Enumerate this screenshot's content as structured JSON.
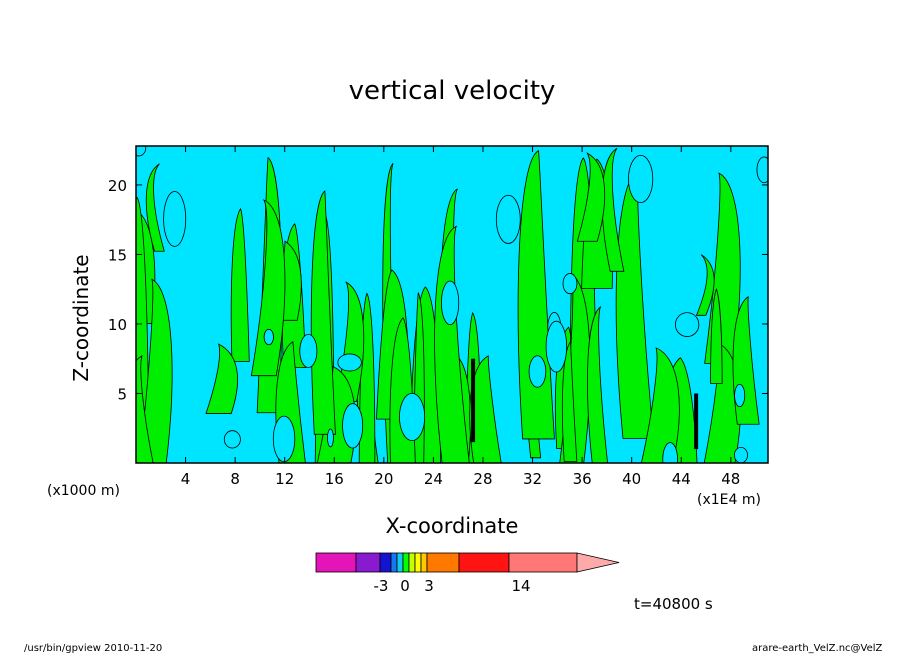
{
  "chart_data": {
    "type": "heatmap",
    "title": "vertical velocity",
    "xlabel": "X-coordinate",
    "ylabel": "Z-coordinate",
    "x_unit": "(x1000 m)",
    "y_unit": "(x1E4 m)",
    "x_ticks": [
      4,
      8,
      12,
      16,
      20,
      24,
      28,
      32,
      36,
      40,
      44,
      48
    ],
    "y_ticks": [
      5,
      10,
      15,
      20
    ],
    "xlim": [
      0,
      51
    ],
    "ylim": [
      0,
      22.8
    ],
    "colorbar": {
      "labels": [
        "-3",
        "0",
        "3",
        "14"
      ],
      "colors": [
        "#e314b8",
        "#8a1ad0",
        "#1414d0",
        "#1478f0",
        "#14c8f0",
        "#00ff00",
        "#c8ff00",
        "#ffff00",
        "#ffc800",
        "#ff7800",
        "#ff1414",
        "#ff7878",
        "#ffaaaa"
      ]
    },
    "field_colors": {
      "negative": "#00e5ff",
      "positive": "#00ee00",
      "strong": "#000000"
    },
    "time_label": "t=40800 s"
  },
  "footer": {
    "left": "/usr/bin/gpview   2010-11-20",
    "right": "arare-earth_VelZ.nc@VelZ"
  }
}
